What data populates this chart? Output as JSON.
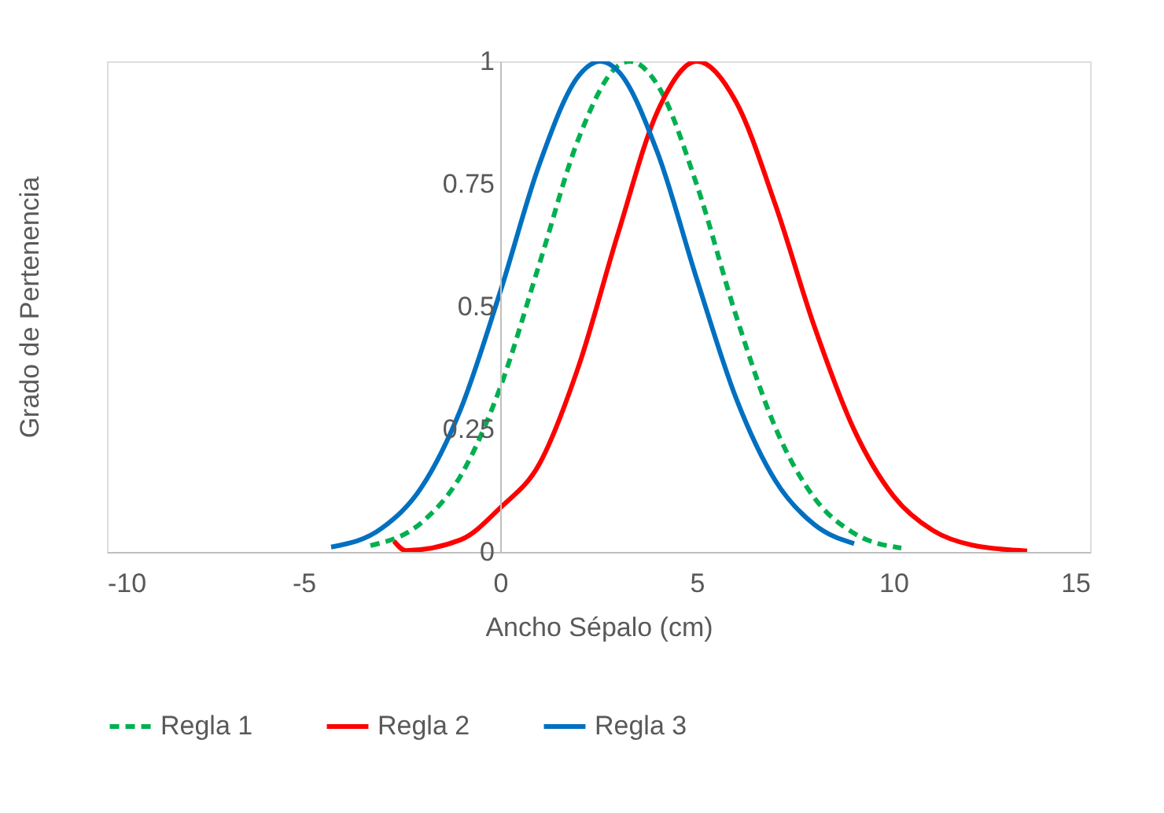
{
  "chart_data": {
    "type": "line",
    "xlabel": "Ancho Sépalo (cm)",
    "ylabel": "Grado de Pertenencia",
    "xlim": [
      -10,
      15
    ],
    "xticks": [
      -10,
      -5,
      0,
      5,
      10,
      15
    ],
    "ylim": [
      0,
      1
    ],
    "yticks": [
      0,
      0.25,
      0.5,
      0.75,
      1
    ],
    "grid": false,
    "legend": "bottom",
    "marker": "none",
    "series": [
      {
        "name": "Regla 1",
        "color": "#00b050",
        "line_style": "dashed",
        "x": [
          -3.3,
          -2,
          -1,
          0,
          1,
          2,
          3,
          3.3,
          4,
          5,
          6,
          7,
          8,
          9,
          10.2
        ],
        "values": [
          0.013,
          0.06,
          0.156,
          0.335,
          0.588,
          0.844,
          0.991,
          1,
          0.952,
          0.748,
          0.481,
          0.253,
          0.109,
          0.038,
          0.008
        ]
      },
      {
        "name": "Regla 2",
        "color": "#ff0000",
        "line_style": "solid",
        "x": [
          -2.7,
          -2.4,
          -1,
          0,
          1,
          2,
          3,
          4,
          5,
          6,
          7,
          8,
          9,
          10,
          11,
          12,
          13.4
        ],
        "values": [
          0.022,
          0.003,
          0.025,
          0.09,
          0.18,
          0.38,
          0.65,
          0.898,
          1,
          0.917,
          0.707,
          0.457,
          0.249,
          0.114,
          0.044,
          0.014,
          0.002
        ]
      },
      {
        "name": "Regla 3",
        "color": "#0070c0",
        "line_style": "solid",
        "x": [
          -4.3,
          -3,
          -2,
          -1,
          0,
          1,
          2,
          2.55,
          3,
          4,
          5,
          6,
          7,
          8,
          9
        ],
        "values": [
          0.01,
          0.049,
          0.132,
          0.292,
          0.53,
          0.791,
          0.971,
          1,
          0.98,
          0.814,
          0.556,
          0.313,
          0.145,
          0.055,
          0.017
        ]
      }
    ]
  }
}
